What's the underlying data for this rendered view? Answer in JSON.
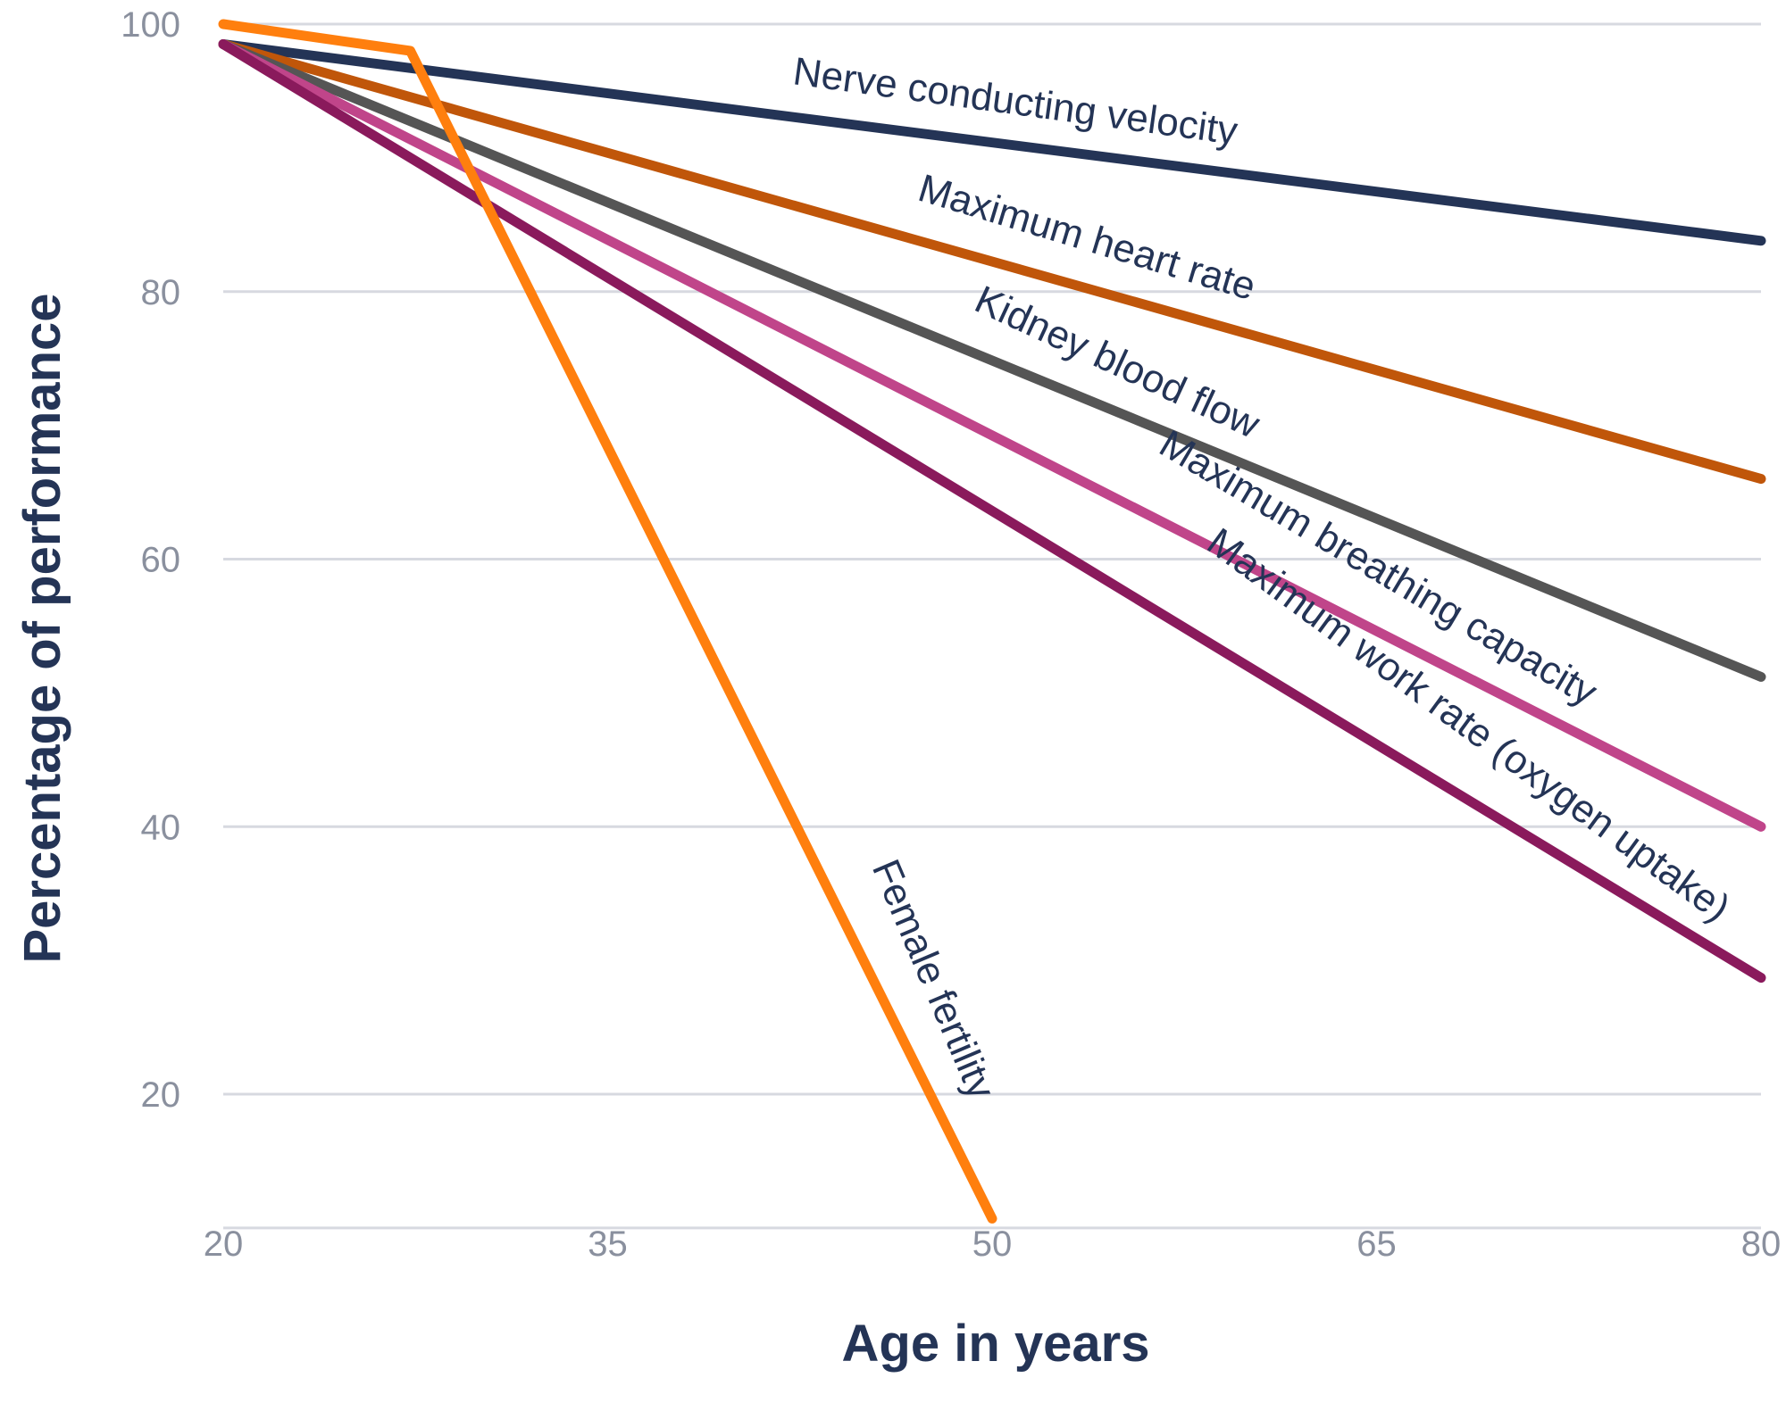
{
  "chart_data": {
    "type": "line",
    "title": "",
    "xlabel": "Age in years",
    "ylabel": "Percentage of performance",
    "xlim": [
      20,
      80
    ],
    "ylim": [
      10,
      100
    ],
    "x_ticks": [
      20,
      35,
      50,
      65,
      80
    ],
    "y_ticks": [
      20,
      40,
      60,
      80,
      100
    ],
    "x_tick_labels": [
      "20",
      "35",
      "50",
      "65",
      "80"
    ],
    "y_tick_labels": [
      "20",
      "40",
      "60",
      "80",
      "100"
    ],
    "grid": true,
    "legend": "inline labels",
    "series": [
      {
        "name": "Nerve conducting velocity",
        "color": "#243456",
        "points": [
          [
            20,
            98.5
          ],
          [
            80,
            83.8
          ]
        ]
      },
      {
        "name": "Maximum heart rate",
        "color": "#c0560a",
        "points": [
          [
            20,
            98.5
          ],
          [
            80,
            66.0
          ]
        ]
      },
      {
        "name": "Kidney blood flow",
        "color": "#555555",
        "points": [
          [
            20,
            98.5
          ],
          [
            80,
            51.2
          ]
        ]
      },
      {
        "name": "Maximum breathing capacity",
        "color": "#c0458a",
        "points": [
          [
            20,
            98.5
          ],
          [
            80,
            40.0
          ]
        ]
      },
      {
        "name": "Maximum work rate (oxygen uptake)",
        "color": "#8a1a5c",
        "points": [
          [
            20,
            98.5
          ],
          [
            80,
            28.7
          ]
        ]
      },
      {
        "name": "Female fertility",
        "color": "#ff7f0e",
        "points": [
          [
            20,
            100.0
          ],
          [
            27.3,
            98.0
          ],
          [
            50,
            10.7
          ]
        ]
      }
    ]
  }
}
